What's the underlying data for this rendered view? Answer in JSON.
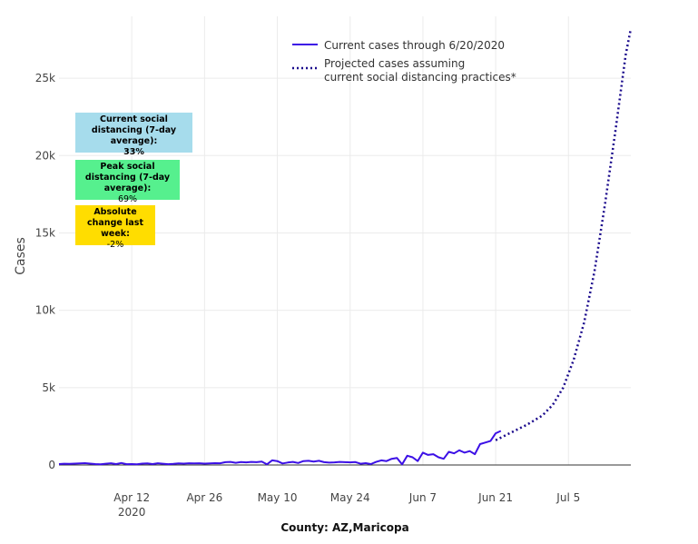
{
  "chart_data": {
    "type": "line",
    "title": "",
    "xlabel": "County: AZ,Maricopa",
    "ylabel": "Cases",
    "x_range": [
      "2020-03-29",
      "2020-07-17"
    ],
    "y_range": [
      0,
      29000
    ],
    "y_ticks": [
      0,
      5000,
      10000,
      15000,
      20000,
      25000
    ],
    "y_tick_labels": [
      "0",
      "5k",
      "10k",
      "15k",
      "20k",
      "25k"
    ],
    "x_ticks": [
      "2020-04-12",
      "2020-04-26",
      "2020-05-10",
      "2020-05-24",
      "2020-06-07",
      "2020-06-21",
      "2020-07-05"
    ],
    "x_tick_labels": [
      "Apr 12",
      "Apr 26",
      "May 10",
      "May 24",
      "Jun 7",
      "Jun 21",
      "Jul 5"
    ],
    "x_tick_year": "2020",
    "grid": true,
    "legend_position": "top-center",
    "series": [
      {
        "name": "Current cases through 6/20/2020",
        "style": "solid",
        "color": "#3c10e6",
        "points": [
          [
            "2020-03-29",
            60
          ],
          [
            "2020-03-30",
            80
          ],
          [
            "2020-03-31",
            70
          ],
          [
            "2020-04-01",
            90
          ],
          [
            "2020-04-02",
            100
          ],
          [
            "2020-04-03",
            120
          ],
          [
            "2020-04-04",
            90
          ],
          [
            "2020-04-05",
            60
          ],
          [
            "2020-04-06",
            40
          ],
          [
            "2020-04-07",
            80
          ],
          [
            "2020-04-08",
            110
          ],
          [
            "2020-04-09",
            60
          ],
          [
            "2020-04-10",
            130
          ],
          [
            "2020-04-11",
            50
          ],
          [
            "2020-04-12",
            60
          ],
          [
            "2020-04-13",
            40
          ],
          [
            "2020-04-14",
            90
          ],
          [
            "2020-04-15",
            100
          ],
          [
            "2020-04-16",
            60
          ],
          [
            "2020-04-17",
            110
          ],
          [
            "2020-04-18",
            80
          ],
          [
            "2020-04-19",
            50
          ],
          [
            "2020-04-20",
            70
          ],
          [
            "2020-04-21",
            100
          ],
          [
            "2020-04-22",
            90
          ],
          [
            "2020-04-23",
            110
          ],
          [
            "2020-04-24",
            100
          ],
          [
            "2020-04-25",
            110
          ],
          [
            "2020-04-26",
            90
          ],
          [
            "2020-04-27",
            100
          ],
          [
            "2020-04-28",
            120
          ],
          [
            "2020-04-29",
            110
          ],
          [
            "2020-04-30",
            180
          ],
          [
            "2020-05-01",
            200
          ],
          [
            "2020-05-02",
            140
          ],
          [
            "2020-05-03",
            190
          ],
          [
            "2020-05-04",
            170
          ],
          [
            "2020-05-05",
            200
          ],
          [
            "2020-05-06",
            180
          ],
          [
            "2020-05-07",
            220
          ],
          [
            "2020-05-08",
            40
          ],
          [
            "2020-05-09",
            300
          ],
          [
            "2020-05-10",
            250
          ],
          [
            "2020-05-11",
            100
          ],
          [
            "2020-05-12",
            160
          ],
          [
            "2020-05-13",
            200
          ],
          [
            "2020-05-14",
            130
          ],
          [
            "2020-05-15",
            250
          ],
          [
            "2020-05-16",
            270
          ],
          [
            "2020-05-17",
            220
          ],
          [
            "2020-05-18",
            270
          ],
          [
            "2020-05-19",
            180
          ],
          [
            "2020-05-20",
            150
          ],
          [
            "2020-05-21",
            170
          ],
          [
            "2020-05-22",
            200
          ],
          [
            "2020-05-23",
            180
          ],
          [
            "2020-05-24",
            170
          ],
          [
            "2020-05-25",
            190
          ],
          [
            "2020-05-26",
            80
          ],
          [
            "2020-05-27",
            120
          ],
          [
            "2020-05-28",
            60
          ],
          [
            "2020-05-29",
            200
          ],
          [
            "2020-05-30",
            300
          ],
          [
            "2020-05-31",
            250
          ],
          [
            "2020-06-01",
            400
          ],
          [
            "2020-06-02",
            450
          ],
          [
            "2020-06-03",
            40
          ],
          [
            "2020-06-04",
            600
          ],
          [
            "2020-06-05",
            500
          ],
          [
            "2020-06-06",
            250
          ],
          [
            "2020-06-07",
            800
          ],
          [
            "2020-06-08",
            650
          ],
          [
            "2020-06-09",
            700
          ],
          [
            "2020-06-10",
            500
          ],
          [
            "2020-06-11",
            400
          ],
          [
            "2020-06-12",
            850
          ],
          [
            "2020-06-13",
            750
          ],
          [
            "2020-06-14",
            950
          ],
          [
            "2020-06-15",
            800
          ],
          [
            "2020-06-16",
            900
          ],
          [
            "2020-06-17",
            700
          ],
          [
            "2020-06-18",
            1350
          ],
          [
            "2020-06-19",
            1450
          ],
          [
            "2020-06-20",
            1550
          ],
          [
            "2020-06-21",
            2050
          ],
          [
            "2020-06-22",
            2200
          ]
        ]
      },
      {
        "name": "Projected cases assuming current social distancing practices*",
        "style": "dotted",
        "color": "#1a0a8c",
        "points": [
          [
            "2020-06-21",
            1600
          ],
          [
            "2020-06-24",
            2100
          ],
          [
            "2020-06-27",
            2600
          ],
          [
            "2020-06-30",
            3200
          ],
          [
            "2020-07-02",
            3900
          ],
          [
            "2020-07-04",
            5000
          ],
          [
            "2020-07-06",
            6800
          ],
          [
            "2020-07-08",
            9200
          ],
          [
            "2020-07-10",
            12500
          ],
          [
            "2020-07-12",
            16800
          ],
          [
            "2020-07-14",
            21500
          ],
          [
            "2020-07-16",
            26500
          ],
          [
            "2020-07-17",
            28200
          ]
        ]
      }
    ]
  },
  "annotations": [
    {
      "title": "Current social distancing (7-day average):",
      "value": "33%",
      "color": "#a6dcec",
      "value_bold": true
    },
    {
      "title": "Peak social distancing (7-day average):",
      "value": "69%",
      "color": "#56f08e",
      "value_bold": false
    },
    {
      "title": "Absolute change last week:",
      "value": "-2%",
      "color": "#ffdd00",
      "value_bold": false
    }
  ]
}
